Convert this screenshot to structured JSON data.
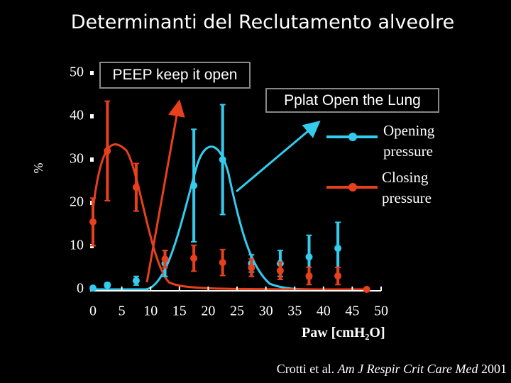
{
  "chart_data": {
    "type": "scatter",
    "title": "Determinanti del Reclutamento alveolre",
    "x_label": "Paw [cmH₂O]",
    "y_label": "%",
    "annotations": [
      "PEEP keep it open",
      "Pplat Open the Lung"
    ],
    "citation": {
      "authors": "Crotti et al.",
      "journal": "Am J Respir Crit Care Med",
      "year": "2001"
    },
    "x": [
      0,
      2.5,
      7.5,
      12.5,
      17.5,
      22.5,
      27.5,
      32.5,
      37.5,
      42.5,
      47.5
    ],
    "series": [
      {
        "name": "Opening pressure",
        "color": "#33ccee",
        "values": [
          0.3,
          1,
          2,
          6,
          24,
          30,
          6,
          6,
          7.5,
          9.5,
          null
        ],
        "errors": [
          0,
          0.5,
          1,
          3,
          13,
          12.7,
          2,
          3,
          5,
          6,
          null
        ]
      },
      {
        "name": "Closing pressure",
        "color": "#e8401c",
        "values": [
          15.6,
          32,
          23.6,
          7,
          7.2,
          6.2,
          5,
          4.3,
          3.1,
          3.1,
          0
        ],
        "errors": [
          5.5,
          11.5,
          5.5,
          2,
          3,
          3,
          2,
          2,
          2,
          2,
          0
        ]
      }
    ],
    "xlim": [
      0,
      50
    ],
    "xticks": [
      0,
      5,
      10,
      15,
      20,
      25,
      30,
      35,
      40,
      45,
      50
    ],
    "ylim": [
      0,
      50
    ],
    "yticks": [
      0,
      10,
      20,
      30,
      40,
      50
    ]
  }
}
